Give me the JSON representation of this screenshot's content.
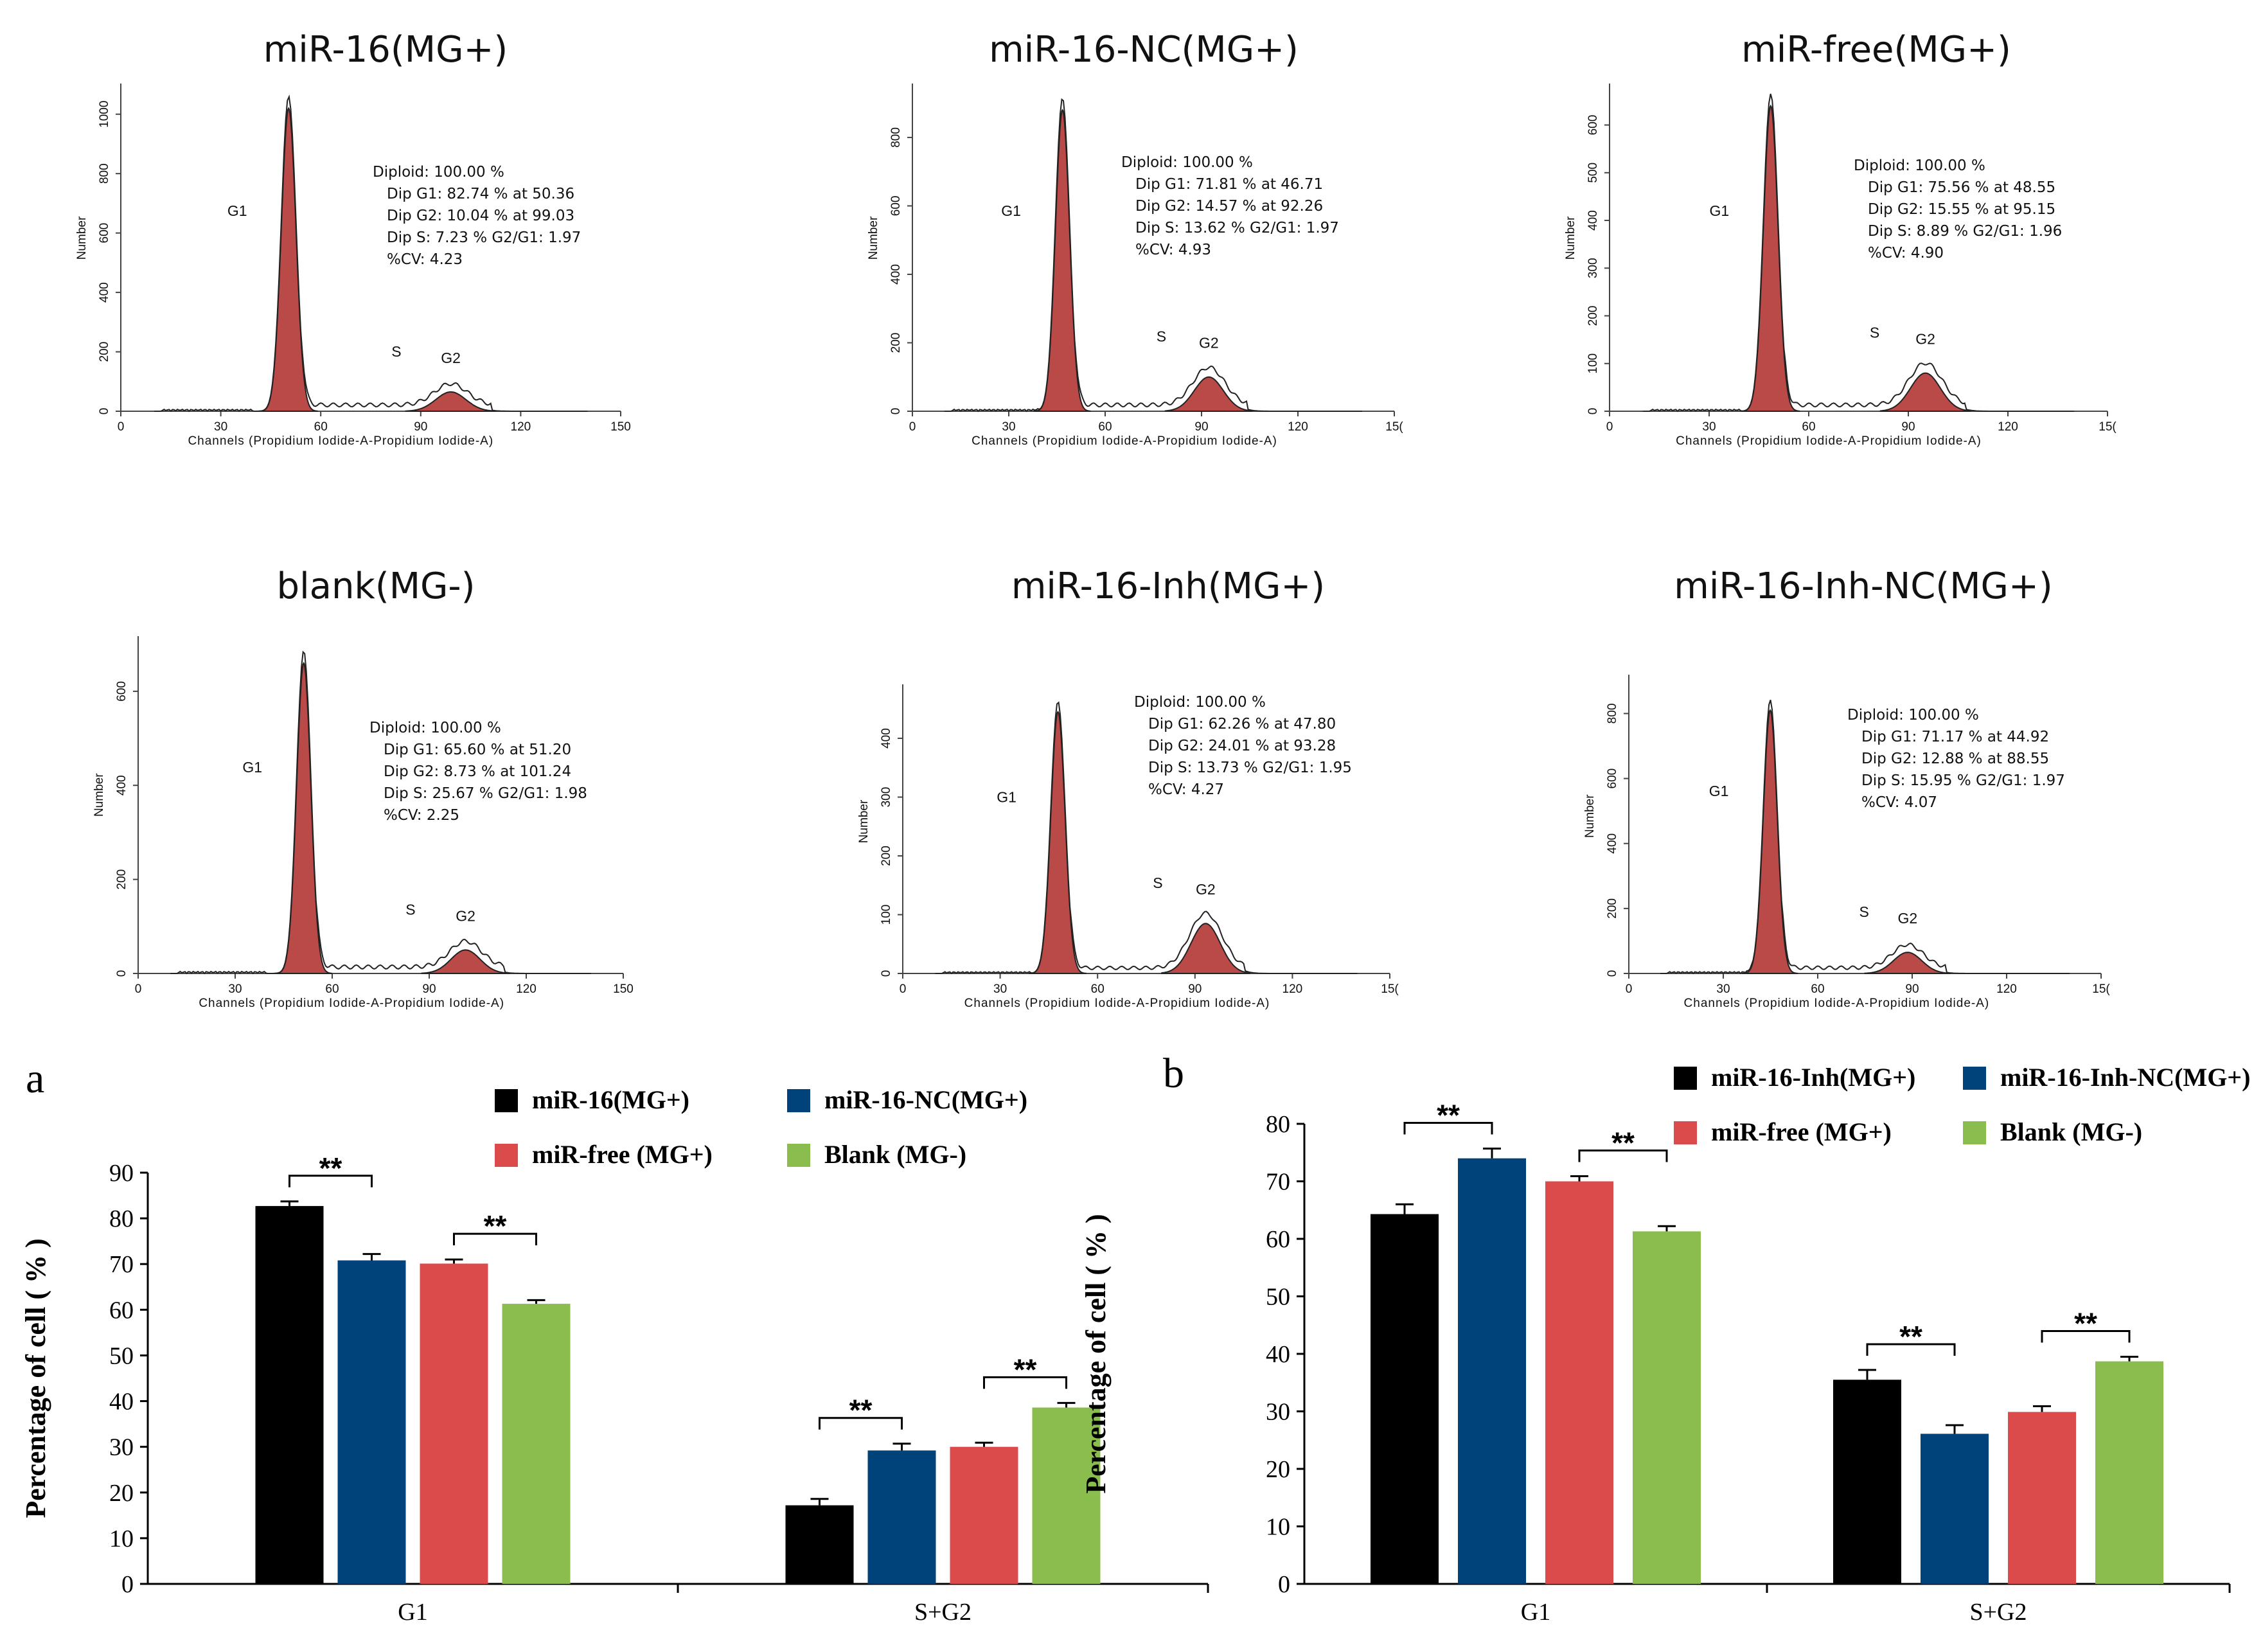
{
  "histograms": [
    {
      "title": "miR-16(MG+)",
      "xlabel": "Channels (Propidium Iodide-A-Propidium Iodide-A)",
      "ylabel": "Number",
      "xticks": [
        "0",
        "30",
        "60",
        "90",
        "120",
        "150"
      ],
      "xmax": 150,
      "yticks": [
        "0",
        "200",
        "400",
        "600",
        "800",
        "1000"
      ],
      "ymax": 1060,
      "g1_peak": {
        "x": 50.36,
        "y": 1020
      },
      "g2_peak": {
        "x": 99.03,
        "y": 65
      },
      "phase_labels": {
        "g1": "G1",
        "s": "S",
        "g2": "G2"
      },
      "stats": {
        "diploid": "Diploid: 100.00 %",
        "g1": "Dip G1: 82.74 % at 50.36",
        "g2": "Dip G2: 10.04 % at 99.03",
        "s": "Dip S: 7.23 %   G2/G1: 1.97",
        "cv": "%CV: 4.23"
      }
    },
    {
      "title": "miR-16-NC(MG+)",
      "xlabel": "Channels (Propidium Iodide-A-Propidium Iodide-A)",
      "ylabel": "Number",
      "xticks": [
        "0",
        "30",
        "60",
        "90",
        "120",
        "15("
      ],
      "xmax": 150,
      "yticks": [
        "0",
        "200",
        "400",
        "600",
        "800"
      ],
      "ymax": 920,
      "g1_peak": {
        "x": 46.71,
        "y": 880
      },
      "g2_peak": {
        "x": 92.26,
        "y": 100
      },
      "phase_labels": {
        "g1": "G1",
        "s": "S",
        "g2": "G2"
      },
      "stats": {
        "diploid": "Diploid: 100.00 %",
        "g1": "Dip G1: 71.81 % at 46.71",
        "g2": "Dip G2: 14.57 % at 92.26",
        "s": "Dip S: 13.62 %   G2/G1: 1.97",
        "cv": "%CV: 4.93"
      }
    },
    {
      "title": "miR-free(MG+)",
      "xlabel": "Channels (Propidium Iodide-A-Propidium Iodide-A)",
      "ylabel": "Number",
      "xticks": [
        "0",
        "30",
        "60",
        "90",
        "120",
        "15("
      ],
      "xmax": 150,
      "yticks": [
        "0",
        "100",
        "200",
        "300",
        "400",
        "500",
        "600"
      ],
      "ymax": 660,
      "g1_peak": {
        "x": 48.55,
        "y": 640
      },
      "g2_peak": {
        "x": 95.15,
        "y": 80
      },
      "phase_labels": {
        "g1": "G1",
        "s": "S",
        "g2": "G2"
      },
      "stats": {
        "diploid": "Diploid: 100.00 %",
        "g1": "Dip G1: 75.56 % at 48.55",
        "g2": "Dip G2: 15.55 % at 95.15",
        "s": "Dip S: 8.89 %   G2/G1: 1.96",
        "cv": "%CV: 4.90"
      }
    },
    {
      "title": "blank(MG-)",
      "xlabel": "Channels (Propidium Iodide-A-Propidium Iodide-A)",
      "ylabel": "Number",
      "xticks": [
        "0",
        "30",
        "60",
        "90",
        "120",
        "150"
      ],
      "xmax": 150,
      "yticks": [
        "0",
        "200",
        "400",
        "600"
      ],
      "ymax": 690,
      "g1_peak": {
        "x": 51.2,
        "y": 660
      },
      "g2_peak": {
        "x": 101.24,
        "y": 50
      },
      "phase_labels": {
        "g1": "G1",
        "s": "S",
        "g2": "G2"
      },
      "stats": {
        "diploid": "Diploid: 100.00 %",
        "g1": "Dip G1: 65.60 % at 51.20",
        "g2": "Dip G2: 8.73 % at 101.24",
        "s": "Dip S: 25.67 %   G2/G1: 1.98",
        "cv": "%CV: 2.25"
      }
    },
    {
      "title": "miR-16-Inh(MG+)",
      "xlabel": "Channels (Propidium Iodide-A-Propidium Iodide-A)",
      "ylabel": "Number",
      "xticks": [
        "0",
        "30",
        "60",
        "90",
        "120",
        "15("
      ],
      "xmax": 150,
      "yticks": [
        "0",
        "100",
        "200",
        "300",
        "400"
      ],
      "ymax": 470,
      "g1_peak": {
        "x": 47.8,
        "y": 445
      },
      "g2_peak": {
        "x": 93.28,
        "y": 85
      },
      "phase_labels": {
        "g1": "G1",
        "s": "S",
        "g2": "G2"
      },
      "stats": {
        "diploid": "Diploid: 100.00 %",
        "g1": "Dip G1: 62.26 % at 47.80",
        "g2": "Dip G2: 24.01 % at 93.28",
        "s": "Dip S: 13.73 %   G2/G1: 1.95",
        "cv": "%CV: 4.27"
      }
    },
    {
      "title": "miR-16-Inh-NC(MG+)",
      "xlabel": "Channels (Propidium Iodide-A-Propidium Iodide-A)",
      "ylabel": "Number",
      "xticks": [
        "0",
        "30",
        "60",
        "90",
        "120",
        "15("
      ],
      "xmax": 150,
      "yticks": [
        "0",
        "200",
        "400",
        "600",
        "800"
      ],
      "ymax": 880,
      "g1_peak": {
        "x": 44.92,
        "y": 810
      },
      "g2_peak": {
        "x": 88.55,
        "y": 65
      },
      "phase_labels": {
        "g1": "G1",
        "s": "S",
        "g2": "G2"
      },
      "stats": {
        "diploid": "Diploid: 100.00 %",
        "g1": "Dip G1: 71.17 % at 44.92",
        "g2": "Dip G2: 12.88 % at 88.55",
        "s": "Dip S: 15.95 %   G2/G1: 1.97",
        "cv": "%CV: 4.07"
      }
    }
  ],
  "chart_data": [
    {
      "type": "bar",
      "panel": "a",
      "ylabel": "Percentage of cell ( % )",
      "ylim": [
        0,
        90
      ],
      "yticks": [
        "0",
        "10",
        "20",
        "30",
        "40",
        "50",
        "60",
        "70",
        "80",
        "90"
      ],
      "categories": [
        "G1",
        "S+G2"
      ],
      "series": [
        {
          "name": "miR-16(MG+)",
          "color": "#000000",
          "values": [
            82.7,
            17.2
          ],
          "errors": [
            1.0,
            1.4
          ]
        },
        {
          "name": "miR-16-NC(MG+)",
          "color": "#00427a",
          "values": [
            70.8,
            29.2
          ],
          "errors": [
            1.4,
            1.5
          ]
        },
        {
          "name": "miR-free (MG+)",
          "color": "#dc4b4b",
          "values": [
            70.1,
            30.0
          ],
          "errors": [
            0.9,
            0.9
          ]
        },
        {
          "name": "Blank (MG-)",
          "color": "#8bbd4e",
          "values": [
            61.3,
            38.6
          ],
          "errors": [
            0.8,
            1.0
          ]
        }
      ],
      "significance": [
        {
          "label": "**",
          "category": 0,
          "from": 0,
          "to": 1
        },
        {
          "label": "**",
          "category": 0,
          "from": 2,
          "to": 3
        },
        {
          "label": "**",
          "category": 1,
          "from": 0,
          "to": 1
        },
        {
          "label": "**",
          "category": 1,
          "from": 2,
          "to": 3
        }
      ]
    },
    {
      "type": "bar",
      "panel": "b",
      "ylabel": "Percentage of cell ( % )",
      "ylim": [
        0,
        80
      ],
      "yticks": [
        "0",
        "10",
        "20",
        "30",
        "40",
        "50",
        "60",
        "70",
        "80"
      ],
      "categories": [
        "G1",
        "S+G2"
      ],
      "series": [
        {
          "name": "miR-16-Inh(MG+)",
          "color": "#000000",
          "values": [
            64.3,
            35.5
          ],
          "errors": [
            1.7,
            1.7
          ]
        },
        {
          "name": "miR-16-Inh-NC(MG+)",
          "color": "#00427a",
          "values": [
            74.0,
            26.1
          ],
          "errors": [
            1.7,
            1.5
          ]
        },
        {
          "name": "miR-free (MG+)",
          "color": "#dc4b4b",
          "values": [
            70.0,
            29.9
          ],
          "errors": [
            0.9,
            1.0
          ]
        },
        {
          "name": "Blank (MG-)",
          "color": "#8bbd4e",
          "values": [
            61.3,
            38.7
          ],
          "errors": [
            0.9,
            0.8
          ]
        }
      ],
      "significance": [
        {
          "label": "**",
          "category": 0,
          "from": 0,
          "to": 1
        },
        {
          "label": "**",
          "category": 0,
          "from": 2,
          "to": 3
        },
        {
          "label": "**",
          "category": 1,
          "from": 0,
          "to": 1
        },
        {
          "label": "**",
          "category": 1,
          "from": 2,
          "to": 3
        }
      ]
    }
  ],
  "panel_letters": {
    "a": "a",
    "b": "b"
  },
  "colors": {
    "hist_fill": "#b94a48",
    "hist_stroke": "#222222",
    "axis": "#000000"
  }
}
